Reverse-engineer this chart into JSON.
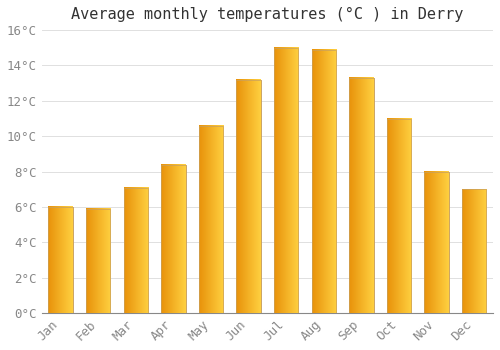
{
  "title": "Average monthly temperatures (°C ) in Derry",
  "months": [
    "Jan",
    "Feb",
    "Mar",
    "Apr",
    "May",
    "Jun",
    "Jul",
    "Aug",
    "Sep",
    "Oct",
    "Nov",
    "Dec"
  ],
  "values": [
    6.0,
    5.9,
    7.1,
    8.4,
    10.6,
    13.2,
    15.0,
    14.9,
    13.3,
    11.0,
    8.0,
    7.0
  ],
  "bar_color_left": "#E8920A",
  "bar_color_right": "#FFD040",
  "bar_edge_color": "#C8A060",
  "background_color": "#FFFFFF",
  "grid_color": "#E0E0E0",
  "ylim": [
    0,
    16
  ],
  "yticks": [
    0,
    2,
    4,
    6,
    8,
    10,
    12,
    14,
    16
  ],
  "title_fontsize": 11,
  "tick_fontsize": 9,
  "tick_label_color": "#888888",
  "bar_width": 0.65
}
